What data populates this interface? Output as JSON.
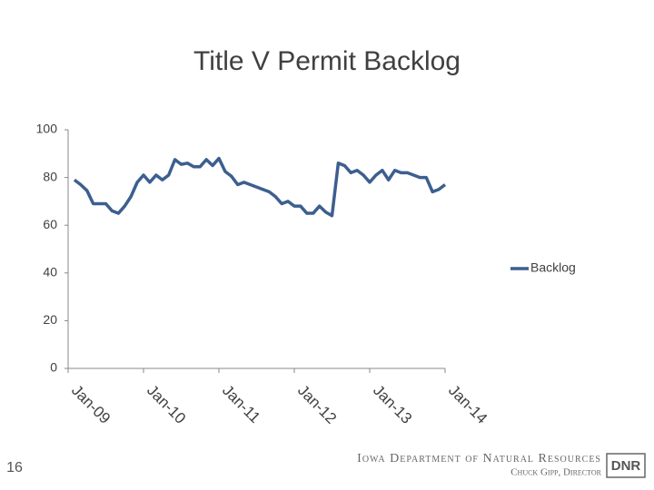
{
  "chart_data": {
    "type": "line",
    "title": "Title V Permit Backlog",
    "x": [
      1,
      2,
      3,
      4,
      5,
      6,
      7,
      8,
      9,
      10,
      11,
      12,
      13,
      14,
      15,
      16,
      17,
      18,
      19,
      20,
      21,
      22,
      23,
      24,
      25,
      26,
      27,
      28,
      29,
      30,
      31,
      32,
      33,
      34,
      35,
      36,
      37,
      38,
      39,
      40,
      41,
      42,
      43,
      44,
      45,
      46,
      47,
      48,
      49,
      50,
      51,
      52,
      53,
      54,
      55,
      56,
      57,
      58,
      59,
      60
    ],
    "series": [
      {
        "name": "Backlog",
        "color": "#3c5f8f",
        "values": [
          79,
          77,
          74.5,
          69,
          69,
          69,
          66,
          65,
          68,
          72,
          78,
          81,
          78,
          81,
          79,
          81,
          87.5,
          85.5,
          86,
          84.5,
          84.5,
          87.5,
          85,
          88,
          82.5,
          80.5,
          77,
          78,
          77,
          76,
          75,
          74,
          72,
          69,
          70,
          68,
          68,
          65,
          65,
          68,
          65.5,
          64,
          86,
          85,
          82,
          83,
          81,
          78,
          81,
          83,
          79,
          83,
          82,
          82,
          81,
          80,
          80,
          74,
          75,
          77
        ]
      }
    ],
    "xlim": [
      0,
      60
    ],
    "xticks": [
      {
        "value": 0,
        "label": "Jan-09"
      },
      {
        "value": 12,
        "label": "Jan-10"
      },
      {
        "value": 24,
        "label": "Jan-11"
      },
      {
        "value": 36,
        "label": "Jan-12"
      },
      {
        "value": 48,
        "label": "Jan-13"
      },
      {
        "value": 60,
        "label": "Jan-14"
      }
    ],
    "ylim": [
      0,
      100
    ],
    "yticks": [
      0,
      20,
      40,
      60,
      80,
      100
    ],
    "grid": false,
    "legend": "right"
  },
  "footer": {
    "page_number": "16",
    "organization": "Iowa Department of Natural Resources",
    "director": "Chuck Gipp, Director",
    "logo": "DNR"
  }
}
